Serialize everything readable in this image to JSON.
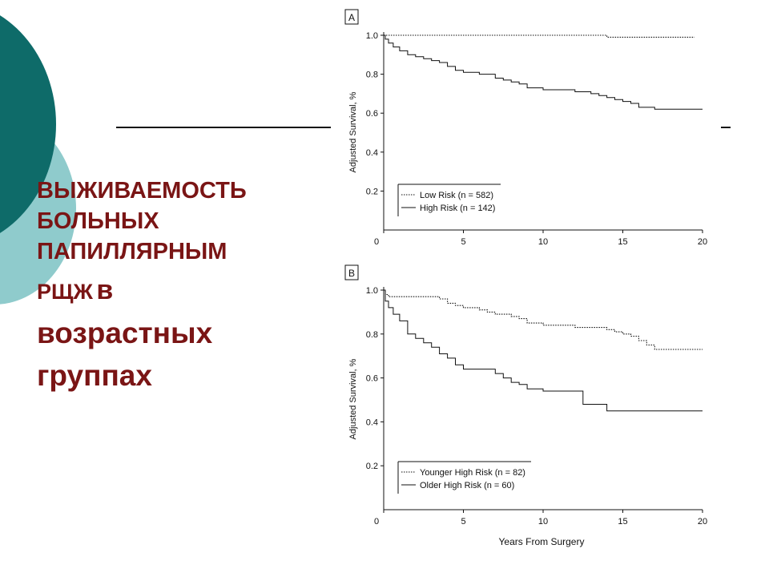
{
  "slide_title": {
    "line1": "ВЫЖИВАЕМОСТЬ",
    "line2": "БОЛЬНЫХ",
    "line3": "ПАПИЛЛЯРНЫМ",
    "line4_abbr": "РЩЖ",
    "line4_word": "в",
    "line5": "возрастных",
    "line6": "группах"
  },
  "colors": {
    "title": "#7a1515",
    "circle_dark": "#0e6b69",
    "circle_light": "#8fcbcc"
  },
  "chart_data": [
    {
      "type": "line",
      "panel_label": "A",
      "xlabel": "",
      "ylabel": "Adjusted Survival, %",
      "xlim": [
        0,
        20
      ],
      "ylim": [
        0,
        1.0
      ],
      "xticks": [
        0,
        5,
        10,
        15,
        20
      ],
      "yticks": [
        0.2,
        0.4,
        0.6,
        0.8,
        1.0
      ],
      "ytick_labels": [
        "0.2",
        "0.4",
        "0.6",
        "0.8",
        "1.0"
      ],
      "legend": [
        "Low Risk (n = 582)",
        "High Risk (n = 142)"
      ],
      "legend_position": "bottom-left",
      "series": [
        {
          "name": "Low Risk (n = 582)",
          "style": "dotted",
          "x": [
            0,
            0.3,
            8.8,
            11.3,
            14.0,
            19.5
          ],
          "y": [
            1.0,
            1.0,
            1.0,
            1.0,
            0.99,
            0.99
          ]
        },
        {
          "name": "High Risk (n = 142)",
          "style": "solid",
          "x": [
            0,
            0.1,
            0.3,
            0.6,
            1.0,
            1.5,
            2.0,
            2.5,
            3.0,
            3.5,
            4.0,
            4.5,
            5.0,
            6.0,
            7.0,
            7.5,
            8.0,
            8.5,
            9.0,
            10.0,
            11.0,
            11.5,
            12.0,
            12.5,
            13.0,
            13.5,
            14.0,
            14.5,
            15.0,
            15.5,
            16.0,
            16.5,
            17.0,
            18.0,
            19.0,
            20.0
          ],
          "y": [
            1.0,
            0.98,
            0.96,
            0.94,
            0.92,
            0.9,
            0.89,
            0.88,
            0.87,
            0.86,
            0.84,
            0.82,
            0.81,
            0.8,
            0.78,
            0.77,
            0.76,
            0.75,
            0.73,
            0.72,
            0.72,
            0.72,
            0.71,
            0.71,
            0.7,
            0.69,
            0.68,
            0.67,
            0.66,
            0.65,
            0.63,
            0.63,
            0.62,
            0.62,
            0.62,
            0.62
          ]
        }
      ]
    },
    {
      "type": "line",
      "panel_label": "B",
      "xlabel": "Years From Surgery",
      "ylabel": "Adjusted Survival, %",
      "xlim": [
        0,
        20
      ],
      "ylim": [
        0,
        1.0
      ],
      "xticks": [
        0,
        5,
        10,
        15,
        20
      ],
      "yticks": [
        0.2,
        0.4,
        0.6,
        0.8,
        1.0
      ],
      "ytick_labels": [
        "0.2",
        "0.4",
        "0.6",
        "0.8",
        "1.0"
      ],
      "legend": [
        "Younger High Risk (n = 82)",
        "Older High Risk (n = 60)"
      ],
      "legend_position": "bottom-left",
      "series": [
        {
          "name": "Younger High Risk (n = 82)",
          "style": "dotted",
          "x": [
            0,
            0.1,
            0.3,
            1.5,
            3.5,
            4.0,
            4.5,
            5.0,
            6.0,
            6.5,
            7.0,
            8.0,
            8.5,
            9.0,
            10.0,
            11.0,
            12.0,
            13.0,
            14.0,
            14.5,
            15.0,
            15.5,
            16.0,
            16.5,
            17.0,
            18.0,
            19.0,
            20.0
          ],
          "y": [
            1.0,
            0.98,
            0.97,
            0.97,
            0.96,
            0.94,
            0.93,
            0.92,
            0.91,
            0.9,
            0.89,
            0.88,
            0.87,
            0.85,
            0.84,
            0.84,
            0.83,
            0.83,
            0.82,
            0.81,
            0.8,
            0.79,
            0.77,
            0.75,
            0.73,
            0.73,
            0.73,
            0.73
          ]
        },
        {
          "name": "Older High Risk (n = 60)",
          "style": "solid",
          "x": [
            0,
            0.1,
            0.3,
            0.6,
            1.0,
            1.5,
            2.0,
            2.5,
            3.0,
            3.5,
            4.0,
            4.5,
            5.0,
            6.0,
            7.0,
            7.5,
            8.0,
            8.5,
            9.0,
            10.0,
            11.0,
            12.0,
            12.5,
            13.0,
            14.0,
            15.0,
            16.0,
            17.0,
            18.0,
            19.0,
            20.0
          ],
          "y": [
            1.0,
            0.95,
            0.92,
            0.89,
            0.86,
            0.8,
            0.78,
            0.76,
            0.74,
            0.71,
            0.69,
            0.66,
            0.64,
            0.64,
            0.62,
            0.6,
            0.58,
            0.57,
            0.55,
            0.54,
            0.54,
            0.54,
            0.48,
            0.48,
            0.45,
            0.45,
            0.45,
            0.45,
            0.45,
            0.45,
            0.45
          ]
        }
      ]
    }
  ]
}
